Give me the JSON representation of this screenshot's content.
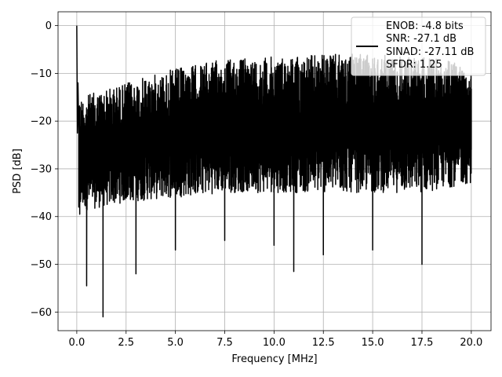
{
  "chart_data": {
    "type": "line",
    "xlabel": "Frequency [MHz]",
    "ylabel": "PSD [dB]",
    "xlim": [
      -0.95,
      21.0
    ],
    "ylim": [
      -63.9,
      2.9
    ],
    "xticks": [
      0.0,
      2.5,
      5.0,
      7.5,
      10.0,
      12.5,
      15.0,
      17.5,
      20.0
    ],
    "xtick_labels": [
      "0.0",
      "2.5",
      "5.0",
      "7.5",
      "10.0",
      "12.5",
      "15.0",
      "17.5",
      "20.0"
    ],
    "yticks": [
      0,
      -10,
      -20,
      -30,
      -40,
      -50,
      -60
    ],
    "ytick_labels": [
      "0",
      "−10",
      "−20",
      "−30",
      "−40",
      "−50",
      "−60"
    ],
    "grid": true,
    "legend_placement": "top-right",
    "legend_lines": [
      "ENOB: -4.8 bits",
      "SNR: -27.1 dB",
      "SINAD: -27.11 dB",
      "SFDR: 1.25"
    ],
    "line_color": "#000000",
    "series": [
      {
        "x": [
          0.0,
          0.03,
          0.06,
          0.1,
          0.15,
          0.2,
          0.3,
          0.5,
          1.33,
          3.0,
          5.0,
          7.5,
          10.0,
          11.0,
          12.5,
          15.0,
          17.5,
          20.0
        ],
        "y": [
          0,
          -22.5,
          -12,
          -38,
          -39.5,
          -25,
          -35,
          -54.5,
          -61,
          -52,
          -47,
          -45,
          -46,
          -51.5,
          -48,
          -47,
          -50,
          -26
        ],
        "envelope_top": [
          [
            0.1,
            -15
          ],
          [
            2.5,
            -12
          ],
          [
            5.0,
            -9
          ],
          [
            7.5,
            -7
          ],
          [
            10.0,
            -6.5
          ],
          [
            12.5,
            -6
          ],
          [
            15.0,
            -6
          ],
          [
            17.5,
            -6.5
          ],
          [
            20.0,
            -8
          ]
        ],
        "envelope_bottom": [
          [
            0.1,
            -39
          ],
          [
            2.5,
            -37
          ],
          [
            5.0,
            -36
          ],
          [
            7.5,
            -35
          ],
          [
            10.0,
            -35
          ],
          [
            12.5,
            -35
          ],
          [
            15.0,
            -35
          ],
          [
            17.5,
            -35
          ],
          [
            20.0,
            -33
          ]
        ]
      }
    ]
  },
  "colors": {
    "line": "#000000",
    "grid": "#b0b0b0",
    "axes": "#000000",
    "legend_border": "#cccccc"
  }
}
